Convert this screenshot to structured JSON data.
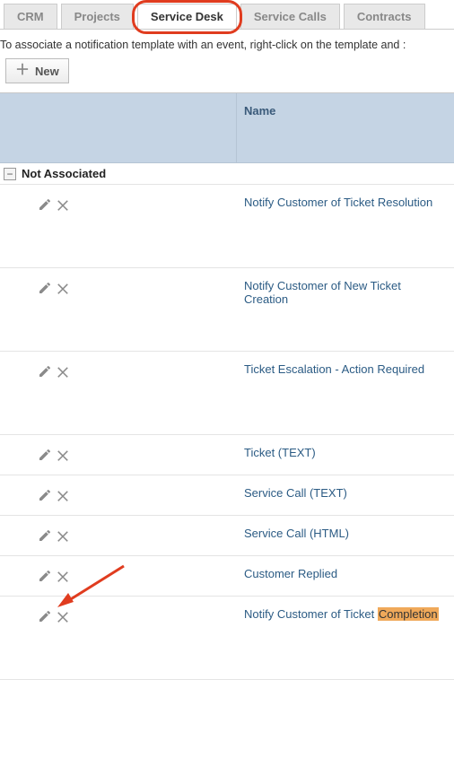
{
  "tabs": [
    {
      "label": "CRM",
      "active": false
    },
    {
      "label": "Projects",
      "active": false
    },
    {
      "label": "Service Desk",
      "active": true
    },
    {
      "label": "Service Calls",
      "active": false
    },
    {
      "label": "Contracts",
      "active": false
    }
  ],
  "tab_highlight_index": 2,
  "intro_text": "To associate a notification template with an event, right-click on the template and :",
  "new_button_label": "New",
  "grid": {
    "columns": {
      "name": "Name"
    },
    "group_label": "Not Associated",
    "group_expanded": true,
    "rows": [
      {
        "name": "Notify Customer of Ticket Resolution",
        "tall": true,
        "highlight": null
      },
      {
        "name": "Notify Customer of New Ticket Creation",
        "tall": true,
        "highlight": null
      },
      {
        "name": "Ticket Escalation - Action Required",
        "tall": true,
        "highlight": null
      },
      {
        "name": "Ticket (TEXT)",
        "tall": false,
        "highlight": null
      },
      {
        "name": "Service Call (TEXT)",
        "tall": false,
        "highlight": null
      },
      {
        "name": "Service Call (HTML)",
        "tall": false,
        "highlight": null
      },
      {
        "name": "Customer Replied",
        "tall": false,
        "highlight": null
      },
      {
        "name": "Notify Customer of Ticket Completion",
        "tall": true,
        "highlight": "Completion",
        "arrow": true
      }
    ]
  },
  "icons": {
    "edit": "pencil-icon",
    "delete": "x-icon",
    "expand": "minus"
  },
  "annotations": {
    "tab_circle_color": "#e03c1f",
    "arrow_color": "#e03c1f"
  }
}
